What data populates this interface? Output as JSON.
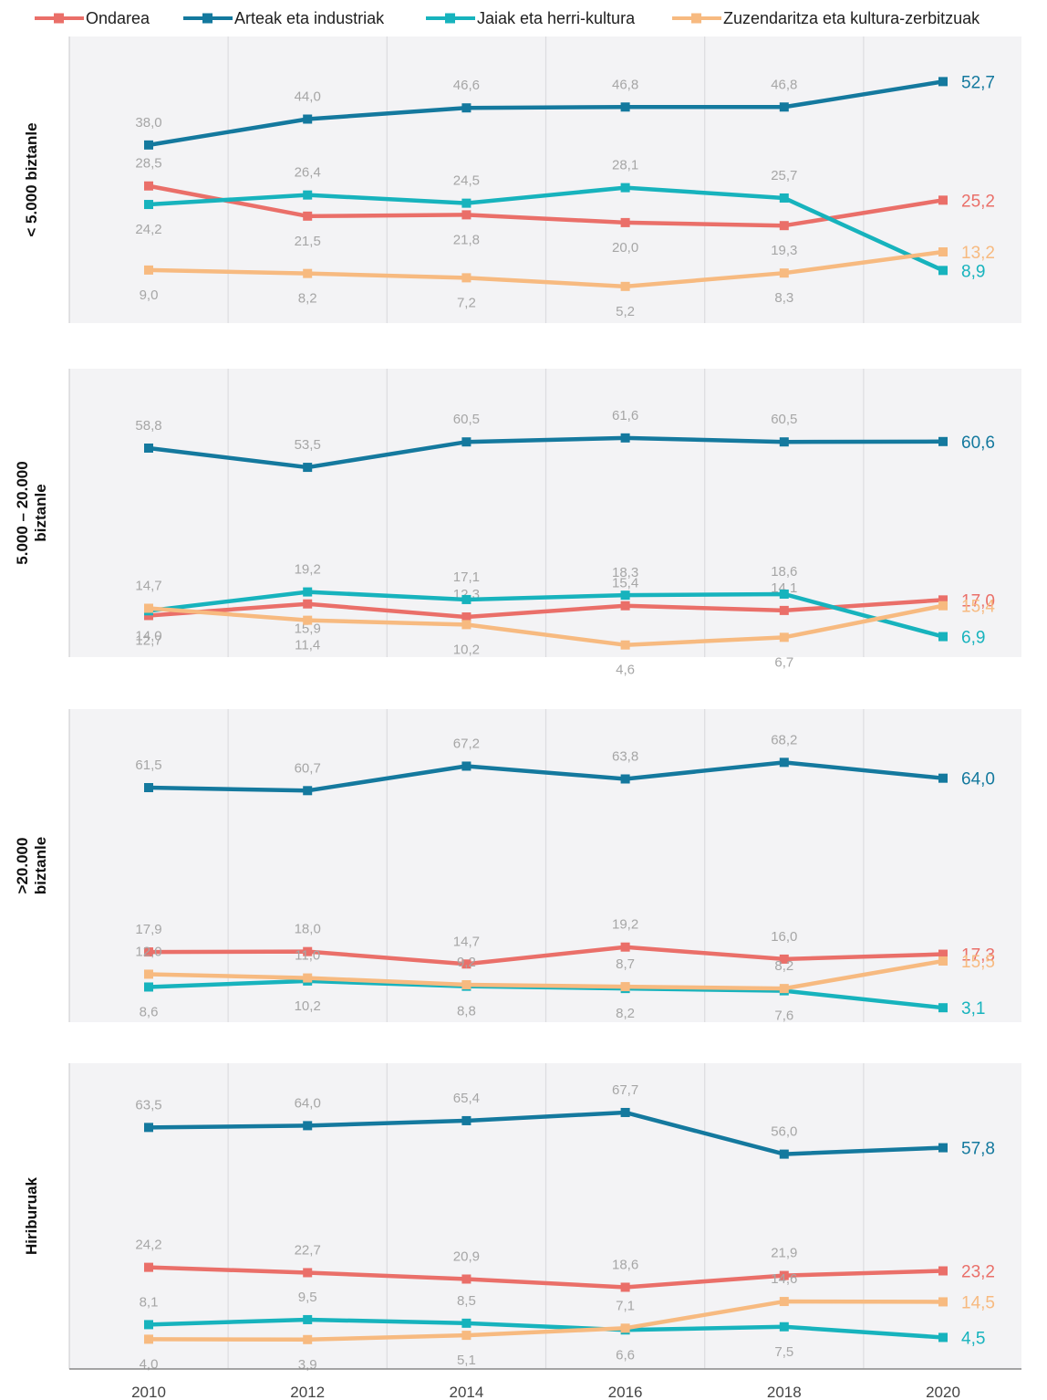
{
  "chart_data": {
    "type": "line",
    "x": [
      2010,
      2012,
      2014,
      2016,
      2018,
      2020
    ],
    "legend_position": "top",
    "grid": "vertical",
    "series_meta": [
      {
        "name": "Ondarea",
        "color": "#ea6f69"
      },
      {
        "name": "Arteak eta industriak",
        "color": "#14799e"
      },
      {
        "name": "Jaiak eta herri-kultura",
        "color": "#17b3bd"
      },
      {
        "name": "Zuzendaritza eta kultura-zerbitzuak",
        "color": "#f7ba80"
      }
    ],
    "panels": [
      {
        "label_lines": [
          "< 5.000 biztanle"
        ],
        "series": [
          {
            "name": "Ondarea",
            "values": [
              28.5,
              21.5,
              21.8,
              20.0,
              19.3,
              25.2
            ],
            "labels": [
              "28,5",
              "21,5",
              "21,8",
              "20,0",
              "19,3",
              "25,2"
            ]
          },
          {
            "name": "Arteak eta industriak",
            "values": [
              38.0,
              44.0,
              46.6,
              46.8,
              46.8,
              52.7
            ],
            "labels": [
              "38,0",
              "44,0",
              "46,6",
              "46,8",
              "46,8",
              "52,7"
            ]
          },
          {
            "name": "Jaiak eta herri-kultura",
            "values": [
              24.2,
              26.4,
              24.5,
              28.1,
              25.7,
              8.9
            ],
            "labels": [
              "24,2",
              "26,4",
              "24,5",
              "28,1",
              "25,7",
              "8,9"
            ]
          },
          {
            "name": "Zuzendaritza eta kultura-zerbitzuak",
            "values": [
              9.0,
              8.2,
              7.2,
              5.2,
              8.3,
              13.2
            ],
            "labels": [
              "9,0",
              "8,2",
              "7,2",
              "5,2",
              "8,3",
              "13,2"
            ]
          }
        ]
      },
      {
        "label_lines": [
          "5.000 – 20.000",
          "biztanle"
        ],
        "series": [
          {
            "name": "Ondarea",
            "values": [
              12.7,
              15.9,
              12.3,
              15.4,
              14.1,
              17.0
            ],
            "labels": [
              "12,7",
              "15,9",
              "12,3",
              "15,4",
              "14,1",
              "17,0"
            ]
          },
          {
            "name": "Arteak eta industriak",
            "values": [
              58.8,
              53.5,
              60.5,
              61.6,
              60.5,
              60.6
            ],
            "labels": [
              "58,8",
              "53,5",
              "60,5",
              "61,6",
              "60,5",
              "60,6"
            ]
          },
          {
            "name": "Jaiak eta herri-kultura",
            "values": [
              14.0,
              19.2,
              17.1,
              18.3,
              18.6,
              6.9
            ],
            "labels": [
              "14,0",
              "19,2",
              "17,1",
              "18,3",
              "18,6",
              "6,9"
            ]
          },
          {
            "name": "Zuzendaritza eta kultura-zerbitzuak",
            "values": [
              14.7,
              11.4,
              10.2,
              4.6,
              6.7,
              15.4
            ],
            "labels": [
              "14,7",
              "11,4",
              "10,2",
              "4,6",
              "6,7",
              "15,4"
            ]
          }
        ]
      },
      {
        "label_lines": [
          ">20.000",
          "biztanle"
        ],
        "series": [
          {
            "name": "Ondarea",
            "values": [
              17.9,
              18.0,
              14.7,
              19.2,
              16.0,
              17.3
            ],
            "labels": [
              "17,9",
              "18,0",
              "14,7",
              "19,2",
              "16,0",
              "17,3"
            ]
          },
          {
            "name": "Arteak eta industriak",
            "values": [
              61.5,
              60.7,
              67.2,
              63.8,
              68.2,
              64.0
            ],
            "labels": [
              "61,5",
              "60,7",
              "67,2",
              "63,8",
              "68,2",
              "64,0"
            ]
          },
          {
            "name": "Jaiak eta herri-kultura",
            "values": [
              8.6,
              10.2,
              8.8,
              8.2,
              7.6,
              3.1
            ],
            "labels": [
              "8,6",
              "10,2",
              "8,8",
              "8,2",
              "7,6",
              "3,1"
            ]
          },
          {
            "name": "Zuzendaritza eta kultura-zerbitzuak",
            "values": [
              12.0,
              11.0,
              9.2,
              8.7,
              8.2,
              15.5
            ],
            "labels": [
              "12,0",
              "11,0",
              "9,2",
              "8,7",
              "8,2",
              "15,5"
            ]
          }
        ]
      },
      {
        "label_lines": [
          "Hiriburuak"
        ],
        "series": [
          {
            "name": "Ondarea",
            "values": [
              24.2,
              22.7,
              20.9,
              18.6,
              21.9,
              23.2
            ],
            "labels": [
              "24,2",
              "22,7",
              "20,9",
              "18,6",
              "21,9",
              "23,2"
            ]
          },
          {
            "name": "Arteak eta industriak",
            "values": [
              63.5,
              64.0,
              65.4,
              67.7,
              56.0,
              57.8
            ],
            "labels": [
              "63,5",
              "64,0",
              "65,4",
              "67,7",
              "56,0",
              "57,8"
            ]
          },
          {
            "name": "Jaiak eta herri-kultura",
            "values": [
              8.1,
              9.5,
              8.5,
              6.6,
              7.5,
              4.5
            ],
            "labels": [
              "8,1",
              "9,5",
              "8,5",
              "6,6",
              "7,5",
              "4,5"
            ]
          },
          {
            "name": "Zuzendaritza eta kultura-zerbitzuak",
            "values": [
              4.0,
              3.9,
              5.1,
              7.1,
              14.6,
              14.5
            ],
            "labels": [
              "4,0",
              "3,9",
              "5,1",
              "7,1",
              "14,6",
              "14,5"
            ]
          }
        ]
      }
    ]
  }
}
